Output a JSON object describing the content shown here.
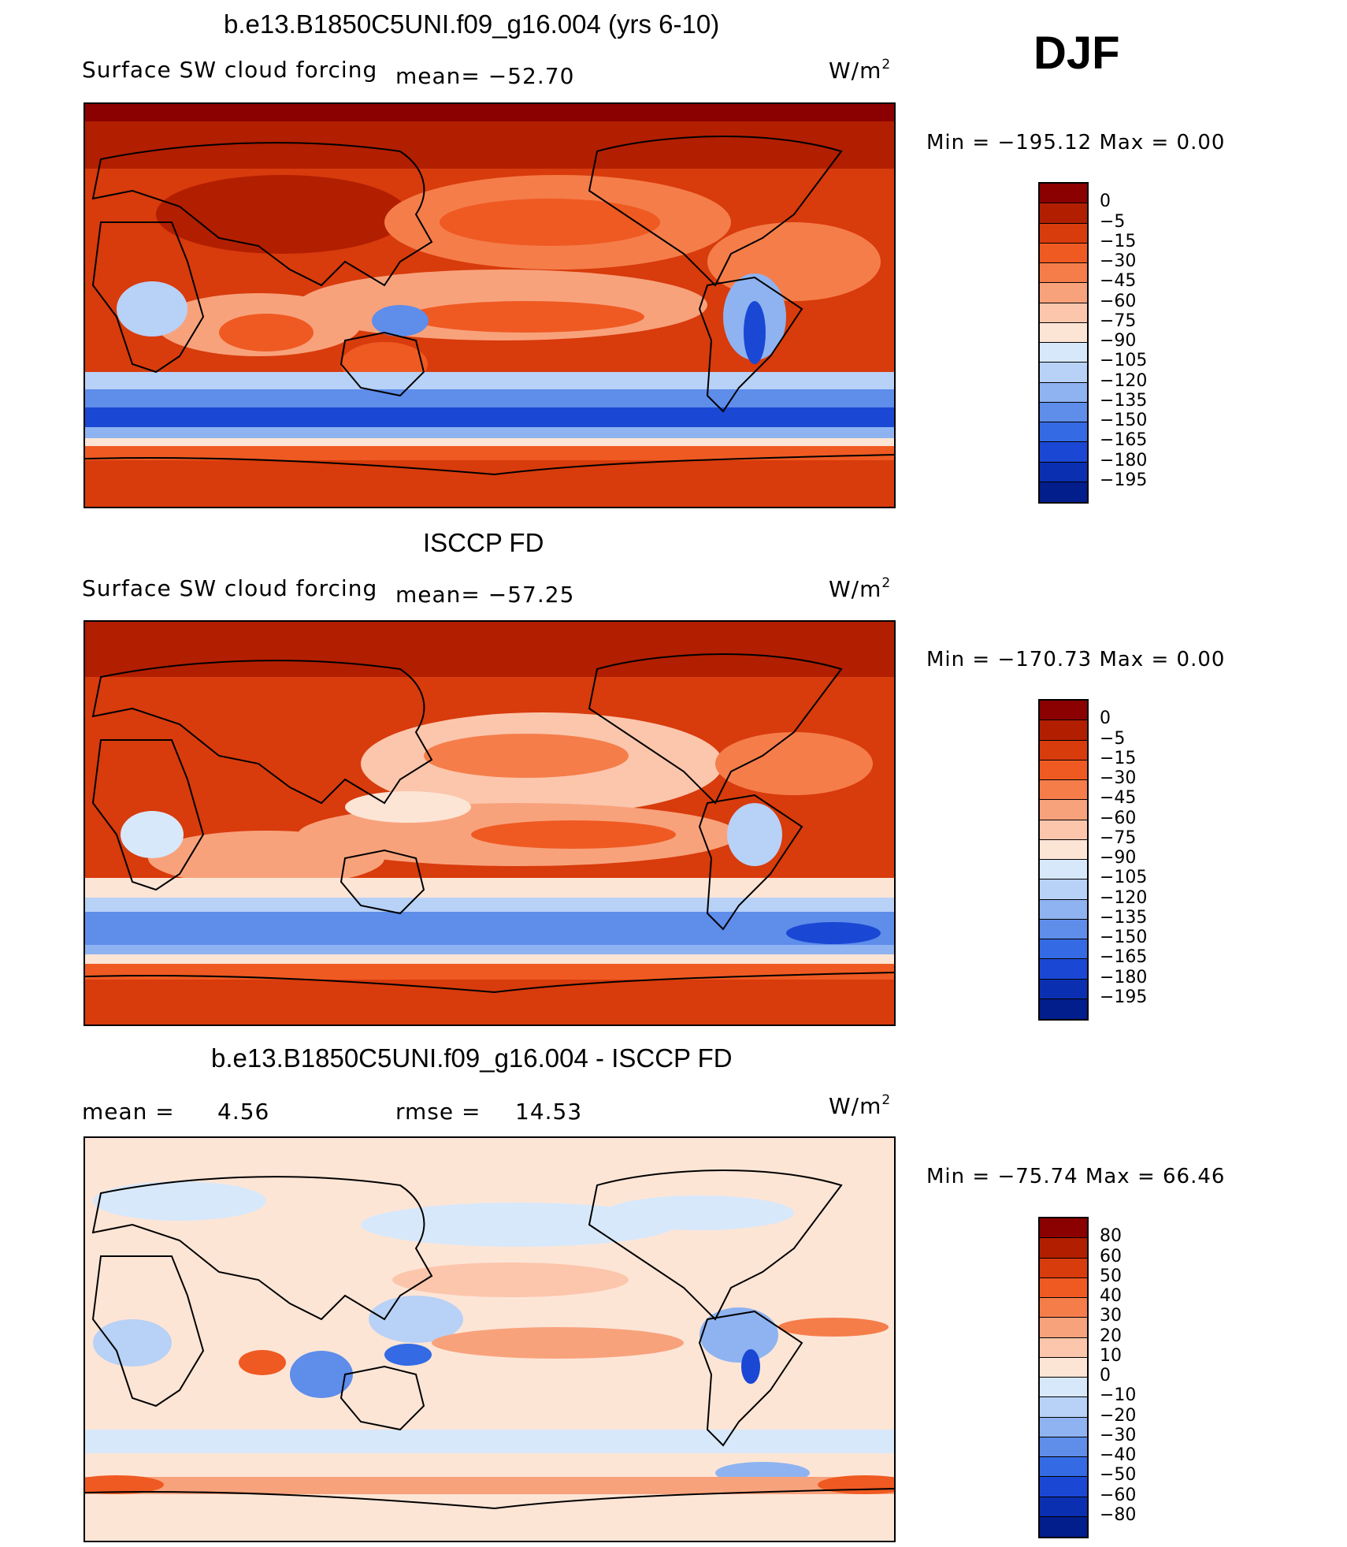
{
  "season": "DJF",
  "units_main": "W/m",
  "units_sup": "2",
  "panels": [
    {
      "title": "b.e13.B1850C5UNI.f09_g16.004 (yrs 6-10)",
      "variable": "Surface SW cloud forcing",
      "mean_text": "mean= −52.70",
      "minmax_text": "Min  =  −195.12  Max  =     0.00",
      "levels": [
        "0",
        "−5",
        "−15",
        "−30",
        "−45",
        "−60",
        "−75",
        "−90",
        "−105",
        "−120",
        "−135",
        "−150",
        "−165",
        "−180",
        "−195"
      ],
      "colors": [
        "#8b0000",
        "#b21e00",
        "#d83b0c",
        "#ef5a22",
        "#f57d4a",
        "#f8a27c",
        "#fbc6ac",
        "#fde5d6",
        "#d7e8fa",
        "#b8d1f6",
        "#8eb3f0",
        "#5e8dea",
        "#346ae3",
        "#1a48d4",
        "#0a2fb0",
        "#021d8c"
      ]
    },
    {
      "title": "ISCCP FD",
      "variable": "Surface SW cloud forcing",
      "mean_text": "mean= −57.25",
      "minmax_text": "Min  =  −170.73  Max  =     0.00",
      "levels": [
        "0",
        "−5",
        "−15",
        "−30",
        "−45",
        "−60",
        "−75",
        "−90",
        "−105",
        "−120",
        "−135",
        "−150",
        "−165",
        "−180",
        "−195"
      ],
      "colors": [
        "#8b0000",
        "#b21e00",
        "#d83b0c",
        "#ef5a22",
        "#f57d4a",
        "#f8a27c",
        "#fbc6ac",
        "#fde5d6",
        "#d7e8fa",
        "#b8d1f6",
        "#8eb3f0",
        "#5e8dea",
        "#346ae3",
        "#1a48d4",
        "#0a2fb0",
        "#021d8c"
      ]
    },
    {
      "title": "b.e13.B1850C5UNI.f09_g16.004 - ISCCP FD",
      "mean_label": "mean  =",
      "mean_value": "4.56",
      "rmse_label": "rmse  =",
      "rmse_value": "14.53",
      "minmax_text": "Min  =  −75.74  Max  =    66.46",
      "levels": [
        "80",
        "60",
        "50",
        "40",
        "30",
        "20",
        "10",
        "0",
        "−10",
        "−20",
        "−30",
        "−40",
        "−50",
        "−60",
        "−80"
      ],
      "colors": [
        "#8b0000",
        "#b21e00",
        "#d83b0c",
        "#ef5a22",
        "#f57d4a",
        "#f8a27c",
        "#fbc6ac",
        "#fde5d6",
        "#d7e8fa",
        "#b8d1f6",
        "#8eb3f0",
        "#5e8dea",
        "#346ae3",
        "#1a48d4",
        "#0a2fb0",
        "#021d8c"
      ]
    }
  ]
}
